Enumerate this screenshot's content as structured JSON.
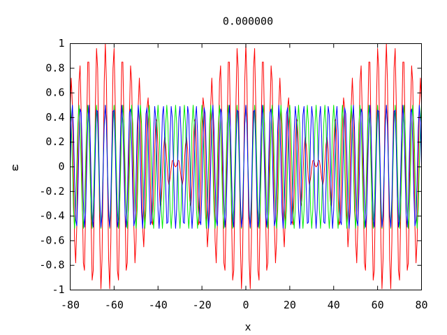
{
  "chart_data": {
    "type": "line",
    "title": "0.000000",
    "x_label": "x",
    "y_label": "ω",
    "xlim": [
      -80,
      80
    ],
    "ylim": [
      -1,
      1
    ],
    "xticks": [
      -80,
      -60,
      -40,
      -20,
      0,
      20,
      40,
      60,
      80
    ],
    "yticks": [
      -1,
      -0.8,
      -0.6,
      -0.4,
      -0.2,
      0,
      0.2,
      0.4,
      0.6,
      0.8,
      1
    ],
    "grid": false,
    "x": [
      -80,
      -79.5,
      -79,
      -78.5,
      -78,
      -77.5,
      -77,
      -76.5,
      -76,
      -75.5,
      -75,
      -74.5,
      -74,
      -73.5,
      -73,
      -72.5,
      -72,
      -71.5,
      -71,
      -70.5,
      -70,
      -69.5,
      -69,
      -68.5,
      -68,
      -67.5,
      -67,
      -66.5,
      -66,
      -65.5,
      -65,
      -64.5,
      -64,
      -63.5,
      -63,
      -62.5,
      -62,
      -61.5,
      -61,
      -60.5,
      -60,
      -59.5,
      -59,
      -58.5,
      -58,
      -57.5,
      -57,
      -56.5,
      -56,
      -55.5,
      -55,
      -54.5,
      -54,
      -53.5,
      -53,
      -52.5,
      -52,
      -51.5,
      -51,
      -50.5,
      -50,
      -49.5,
      -49,
      -48.5,
      -48,
      -47.5,
      -47,
      -46.5,
      -46,
      -45.5,
      -45,
      -44.5,
      -44,
      -43.5,
      -43,
      -42.5,
      -42,
      -41.5,
      -41,
      -40.5,
      -40,
      -39.5,
      -39,
      -38.5,
      -38,
      -37.5,
      -37,
      -36.5,
      -36,
      -35.5,
      -35,
      -34.5,
      -34,
      -33.5,
      -33,
      -32.5,
      -32,
      -31.5,
      -31,
      -30.5,
      -30,
      -29.5,
      -29,
      -28.5,
      -28,
      -27.5,
      -27,
      -26.5,
      -26,
      -25.5,
      -25,
      -24.5,
      -24,
      -23.5,
      -23,
      -22.5,
      -22,
      -21.5,
      -21,
      -20.5,
      -20,
      -19.5,
      -19,
      -18.5,
      -18,
      -17.5,
      -17,
      -16.5,
      -16,
      -15.5,
      -15,
      -14.5,
      -14,
      -13.5,
      -13,
      -12.5,
      -12,
      -11.5,
      -11,
      -10.5,
      -10,
      -9.5,
      -9,
      -8.5,
      -8,
      -7.5,
      -7,
      -6.5,
      -6,
      -5.5,
      -5,
      -4.5,
      -4,
      -3.5,
      -3,
      -2.5,
      -2,
      -1.5,
      -1,
      -0.5,
      0,
      0.5,
      1,
      1.5,
      2,
      2.5,
      3,
      3.5,
      4,
      4.5,
      5,
      5.5,
      6,
      6.5,
      7,
      7.5,
      8,
      8.5,
      9,
      9.5,
      10,
      10.5,
      11,
      11.5,
      12,
      12.5,
      13,
      13.5,
      14,
      14.5,
      15,
      15.5,
      16,
      16.5,
      17,
      17.5,
      18,
      18.5,
      19,
      19.5,
      20,
      20.5,
      21,
      21.5,
      22,
      22.5,
      23,
      23.5,
      24,
      24.5,
      25,
      25.5,
      26,
      26.5,
      27,
      27.5,
      28,
      28.5,
      29,
      29.5,
      30,
      30.5,
      31,
      31.5,
      32,
      32.5,
      33,
      33.5,
      34,
      34.5,
      35,
      35.5,
      36,
      36.5,
      37,
      37.5,
      38,
      38.5,
      39,
      39.5,
      40,
      40.5,
      41,
      41.5,
      42,
      42.5,
      43,
      43.5,
      44,
      44.5,
      45,
      45.5,
      46,
      46.5,
      47,
      47.5,
      48,
      48.5,
      49,
      49.5,
      50,
      50.5,
      51,
      51.5,
      52,
      52.5,
      53,
      53.5,
      54,
      54.5,
      55,
      55.5,
      56,
      56.5,
      57,
      57.5,
      58,
      58.5,
      59,
      59.5,
      60,
      60.5,
      61,
      61.5,
      62,
      62.5,
      63,
      63.5,
      64,
      64.5,
      65,
      65.5,
      66,
      66.5,
      67,
      67.5,
      68,
      68.5,
      69,
      69.5,
      70,
      70.5,
      71,
      71.5,
      72,
      72.5,
      73,
      73.5,
      74,
      74.5,
      75,
      75.5,
      76,
      76.5,
      77,
      77.5,
      78,
      78.5,
      79,
      79.5,
      80
    ],
    "series": [
      {
        "color": "#ff0000",
        "values": [
          0.5,
          0.72,
          0.5,
          -0.05,
          -0.6,
          -0.78,
          -0.48,
          0.14,
          0.69,
          0.82,
          0.44,
          -0.23,
          -0.78,
          -0.84,
          -0.39,
          0.33,
          0.85,
          0.85,
          0.32,
          -0.42,
          -0.92,
          -0.84,
          -0.24,
          0.52,
          0.96,
          0.8,
          0.15,
          -0.61,
          -0.99,
          -0.75,
          -0.05,
          0.69,
          1,
          0.69,
          -0.05,
          -0.75,
          -0.99,
          -0.61,
          0.15,
          0.8,
          0.96,
          0.52,
          -0.24,
          -0.84,
          -0.92,
          -0.42,
          0.32,
          0.85,
          0.85,
          0.33,
          -0.39,
          -0.84,
          -0.78,
          -0.23,
          0.44,
          0.82,
          0.69,
          0.14,
          -0.48,
          -0.78,
          -0.6,
          -0.05,
          0.5,
          0.72,
          0.5,
          -0.02,
          -0.5,
          -0.65,
          -0.4,
          0.08,
          0.48,
          0.56,
          0.31,
          -0.12,
          -0.44,
          -0.47,
          -0.22,
          0.14,
          0.39,
          0.37,
          0.15,
          -0.15,
          -0.32,
          -0.28,
          -0.08,
          0.14,
          0.24,
          0.18,
          0.04,
          -0.1,
          -0.15,
          -0.09,
          -0.01,
          0.05,
          0.05,
          0.01,
          0,
          0.01,
          0.05,
          0.05,
          -0.01,
          -0.09,
          -0.15,
          -0.1,
          0.04,
          0.18,
          0.24,
          0.14,
          -0.08,
          -0.28,
          -0.32,
          -0.15,
          0.15,
          0.37,
          0.39,
          0.14,
          -0.22,
          -0.47,
          -0.44,
          -0.12,
          0.31,
          0.56,
          0.48,
          0.08,
          -0.4,
          -0.65,
          -0.5,
          -0.02,
          0.5,
          0.72,
          0.5,
          -0.05,
          -0.6,
          -0.78,
          -0.48,
          0.14,
          0.69,
          0.82,
          0.44,
          -0.23,
          -0.78,
          -0.84,
          -0.39,
          0.33,
          0.85,
          0.85,
          0.32,
          -0.42,
          -0.92,
          -0.84,
          -0.24,
          0.52,
          0.96,
          0.8,
          0.15,
          -0.61,
          -0.99,
          -0.75,
          -0.05,
          0.69,
          1,
          0.69,
          -0.05,
          -0.75,
          -0.99,
          -0.61,
          0.15,
          0.8,
          0.96,
          0.52,
          -0.24,
          -0.84,
          -0.92,
          -0.42,
          0.32,
          0.85,
          0.85,
          0.33,
          -0.39,
          -0.84,
          -0.78,
          -0.23,
          0.44,
          0.82,
          0.69,
          0.14,
          -0.48,
          -0.78,
          -0.6,
          -0.05,
          0.5,
          0.72,
          0.5,
          -0.02,
          -0.5,
          -0.65,
          -0.4,
          0.08,
          0.48,
          0.56,
          0.31,
          -0.12,
          -0.44,
          -0.47,
          -0.22,
          0.14,
          0.39,
          0.37,
          0.15,
          -0.15,
          -0.32,
          -0.28,
          -0.08,
          0.14,
          0.24,
          0.18,
          0.04,
          -0.1,
          -0.15,
          -0.09,
          -0.01,
          0.05,
          0.05,
          0.01,
          0,
          0.01,
          0.05,
          0.05,
          -0.01,
          -0.09,
          -0.15,
          -0.1,
          0.04,
          0.18,
          0.24,
          0.14,
          -0.08,
          -0.28,
          -0.32,
          -0.15,
          0.15,
          0.37,
          0.39,
          0.14,
          -0.22,
          -0.47,
          -0.44,
          -0.12,
          0.31,
          0.56,
          0.48,
          0.08,
          -0.4,
          -0.65,
          -0.5,
          -0.02,
          0.5,
          0.72,
          0.5,
          -0.05,
          -0.6,
          -0.78,
          -0.48,
          0.14,
          0.69,
          0.82,
          0.44,
          -0.23,
          -0.78,
          -0.84,
          -0.39,
          0.33,
          0.85,
          0.85,
          0.32,
          -0.42,
          -0.92,
          -0.84,
          -0.24,
          0.52,
          0.96,
          0.8,
          0.15,
          -0.61,
          -0.99,
          -0.75,
          -0.05,
          0.69,
          1,
          0.69,
          -0.05,
          -0.75,
          -0.99,
          -0.61,
          0.15,
          0.8,
          0.96,
          0.52,
          -0.24,
          -0.84,
          -0.92,
          -0.42,
          0.32,
          0.85,
          0.85,
          0.33,
          -0.39,
          -0.84,
          -0.78,
          -0.23,
          0.44,
          0.82,
          0.69,
          0.14,
          -0.48,
          -0.78,
          -0.6,
          -0.05,
          0.5,
          0.72,
          0.5
        ]
      },
      {
        "color": "#00ee00",
        "values": [
          0.5,
          0.35,
          0,
          -0.35,
          -0.5,
          -0.35,
          0,
          0.35,
          0.5,
          0.35,
          0,
          -0.35,
          -0.5,
          -0.35,
          0,
          0.35,
          0.5,
          0.35,
          0,
          -0.35,
          -0.5,
          -0.35,
          0,
          0.35,
          0.5,
          0.35,
          0,
          -0.35,
          -0.5,
          -0.35,
          0,
          0.35,
          0.5,
          0.35,
          0,
          -0.35,
          -0.5,
          -0.35,
          0,
          0.35,
          0.5,
          0.35,
          0,
          -0.35,
          -0.5,
          -0.35,
          0,
          0.35,
          0.5,
          0.35,
          0,
          -0.35,
          -0.5,
          -0.35,
          0,
          0.35,
          0.5,
          0.35,
          0,
          -0.35,
          -0.5,
          -0.35,
          0,
          0.35,
          0.5,
          0.35,
          0,
          -0.35,
          -0.5,
          -0.35,
          0,
          0.35,
          0.5,
          0.35,
          0,
          -0.35,
          -0.5,
          -0.35,
          0,
          0.35,
          0.5,
          0.35,
          0,
          -0.35,
          -0.5,
          -0.35,
          0,
          0.35,
          0.5,
          0.35,
          0,
          -0.35,
          -0.5,
          -0.35,
          0,
          0.35,
          0.5,
          0.35,
          0,
          -0.35,
          -0.5,
          -0.35,
          0,
          0.35,
          0.5,
          0.35,
          0,
          -0.35,
          -0.5,
          -0.35,
          0,
          0.35,
          0.5,
          0.35,
          0,
          -0.35,
          -0.5,
          -0.35,
          0,
          0.35,
          0.5,
          0.35,
          0,
          -0.35,
          -0.5,
          -0.35,
          0,
          0.35,
          0.5,
          0.35,
          0,
          -0.35,
          -0.5,
          -0.35,
          0,
          0.35,
          0.5,
          0.35,
          0,
          -0.35,
          -0.5,
          -0.35,
          0,
          0.35,
          0.5,
          0.35,
          0,
          -0.35,
          -0.5,
          -0.35,
          0,
          0.35,
          0.5,
          0.35,
          0,
          -0.35,
          -0.5,
          -0.35,
          0,
          0.35,
          0.5,
          0.35,
          0,
          -0.35,
          -0.5,
          -0.35,
          0,
          0.35,
          0.5,
          0.35,
          0,
          -0.35,
          -0.5,
          -0.35,
          0,
          0.35,
          0.5,
          0.35,
          0,
          -0.35,
          -0.5,
          -0.35,
          0,
          0.35,
          0.5,
          0.35,
          0,
          -0.35,
          -0.5,
          -0.35,
          0,
          0.35,
          0.5,
          0.35,
          0,
          -0.35,
          -0.5,
          -0.35,
          0,
          0.35,
          0.5,
          0.35,
          0,
          -0.35,
          -0.5,
          -0.35,
          0,
          0.35,
          0.5,
          0.35,
          0,
          -0.35,
          -0.5,
          -0.35,
          0,
          0.35,
          0.5,
          0.35,
          0,
          -0.35,
          -0.5,
          -0.35,
          0,
          0.35,
          0.5,
          0.35,
          0,
          -0.35,
          -0.5,
          -0.35,
          0,
          0.35,
          0.5,
          0.35,
          0,
          -0.35,
          -0.5,
          -0.35,
          0,
          0.35,
          0.5,
          0.35,
          0,
          -0.35,
          -0.5,
          -0.35,
          0,
          0.35,
          0.5,
          0.35,
          0,
          -0.35,
          -0.5,
          -0.35,
          0,
          0.35,
          0.5,
          0.35,
          0,
          -0.35,
          -0.5,
          -0.35,
          0,
          0.35,
          0.5,
          0.35,
          0,
          -0.35,
          -0.5,
          -0.35,
          0,
          0.35,
          0.5,
          0.35,
          0,
          -0.35,
          -0.5,
          -0.35,
          0,
          0.35,
          0.5,
          0.35,
          0,
          -0.35,
          -0.5,
          -0.35,
          0,
          0.35,
          0.5,
          0.35,
          0,
          -0.35,
          -0.5,
          -0.35,
          0,
          0.35,
          0.5,
          0.35,
          0,
          -0.35,
          -0.5,
          -0.35,
          0,
          0.35,
          0.5,
          0.35,
          0,
          -0.35,
          -0.5,
          -0.35,
          0,
          0.35,
          0.5,
          0.35,
          0,
          -0.35,
          -0.5,
          -0.35,
          0,
          0.35,
          0.5
        ]
      },
      {
        "color": "#0000ff",
        "values": [
          0,
          0.37,
          0.5,
          0.3,
          -0.1,
          -0.43,
          -0.48,
          -0.21,
          0.19,
          0.47,
          0.44,
          0.12,
          -0.28,
          -0.49,
          -0.39,
          -0.02,
          0.35,
          0.5,
          0.32,
          -0.07,
          -0.42,
          -0.49,
          -0.24,
          0.17,
          0.46,
          0.45,
          0.15,
          -0.26,
          -0.49,
          -0.4,
          -0.05,
          0.34,
          0.5,
          0.34,
          -0.05,
          -0.4,
          -0.49,
          -0.26,
          0.15,
          0.45,
          0.46,
          0.17,
          -0.24,
          -0.49,
          -0.42,
          -0.07,
          0.32,
          0.5,
          0.35,
          -0.02,
          -0.39,
          -0.49,
          -0.28,
          0.12,
          0.44,
          0.47,
          0.19,
          -0.21,
          -0.48,
          -0.43,
          -0.1,
          0.3,
          0.5,
          0.37,
          0,
          -0.37,
          -0.5,
          -0.3,
          0.1,
          0.43,
          0.48,
          0.21,
          -0.19,
          -0.47,
          -0.44,
          -0.12,
          0.28,
          0.49,
          0.39,
          0.02,
          -0.35,
          -0.5,
          -0.32,
          0.07,
          0.42,
          0.49,
          0.24,
          -0.17,
          -0.46,
          -0.45,
          -0.15,
          0.26,
          0.49,
          0.4,
          0.05,
          -0.34,
          -0.5,
          -0.34,
          0.05,
          0.4,
          0.49,
          0.26,
          -0.15,
          -0.45,
          -0.46,
          -0.17,
          0.24,
          0.49,
          0.42,
          0.07,
          -0.32,
          -0.5,
          -0.35,
          0.02,
          0.39,
          0.49,
          0.28,
          -0.12,
          -0.44,
          -0.47,
          -0.19,
          0.21,
          0.48,
          0.43,
          0.1,
          -0.3,
          -0.5,
          -0.37,
          0,
          0.37,
          0.5,
          0.3,
          -0.1,
          -0.43,
          -0.48,
          -0.21,
          0.19,
          0.47,
          0.44,
          0.12,
          -0.28,
          -0.49,
          -0.39,
          -0.02,
          0.35,
          0.5,
          0.32,
          -0.07,
          -0.42,
          -0.49,
          -0.24,
          0.17,
          0.46,
          0.45,
          0.15,
          -0.26,
          -0.49,
          -0.4,
          -0.05,
          0.34,
          0.5,
          0.34,
          -0.05,
          -0.4,
          -0.49,
          -0.26,
          0.15,
          0.45,
          0.46,
          0.17,
          -0.24,
          -0.49,
          -0.42,
          -0.07,
          0.32,
          0.5,
          0.35,
          -0.02,
          -0.39,
          -0.49,
          -0.28,
          0.12,
          0.44,
          0.47,
          0.19,
          -0.21,
          -0.48,
          -0.43,
          -0.1,
          0.3,
          0.5,
          0.37,
          0,
          -0.37,
          -0.5,
          -0.3,
          0.1,
          0.43,
          0.48,
          0.21,
          -0.19,
          -0.47,
          -0.44,
          -0.12,
          0.28,
          0.49,
          0.39,
          0.02,
          -0.35,
          -0.5,
          -0.32,
          0.07,
          0.42,
          0.49,
          0.24,
          -0.17,
          -0.46,
          -0.45,
          -0.15,
          0.26,
          0.49,
          0.4,
          0.05,
          -0.34,
          -0.5,
          -0.34,
          0.05,
          0.4,
          0.49,
          0.26,
          -0.15,
          -0.45,
          -0.46,
          -0.17,
          0.24,
          0.49,
          0.42,
          0.07,
          -0.32,
          -0.5,
          -0.35,
          0.02,
          0.39,
          0.49,
          0.28,
          -0.12,
          -0.44,
          -0.47,
          -0.19,
          0.21,
          0.48,
          0.43,
          0.1,
          -0.3,
          -0.5,
          -0.37,
          0,
          0.37,
          0.5,
          0.3,
          -0.1,
          -0.43,
          -0.48,
          -0.21,
          0.19,
          0.47,
          0.44,
          0.12,
          -0.28,
          -0.49,
          -0.39,
          -0.02,
          0.35,
          0.5,
          0.32,
          -0.07,
          -0.42,
          -0.49,
          -0.24,
          0.17,
          0.46,
          0.45,
          0.15,
          -0.26,
          -0.49,
          -0.4,
          -0.05,
          0.34,
          0.5,
          0.34,
          -0.05,
          -0.4,
          -0.49,
          -0.26,
          0.15,
          0.45,
          0.46,
          0.17,
          -0.24,
          -0.49,
          -0.42,
          -0.07,
          0.32,
          0.5,
          0.35,
          -0.02,
          -0.39,
          -0.49,
          -0.28,
          0.12,
          0.44,
          0.47,
          0.19,
          -0.21,
          -0.48,
          -0.43,
          -0.1,
          0.3,
          0.5,
          0.37,
          0
        ]
      }
    ]
  }
}
